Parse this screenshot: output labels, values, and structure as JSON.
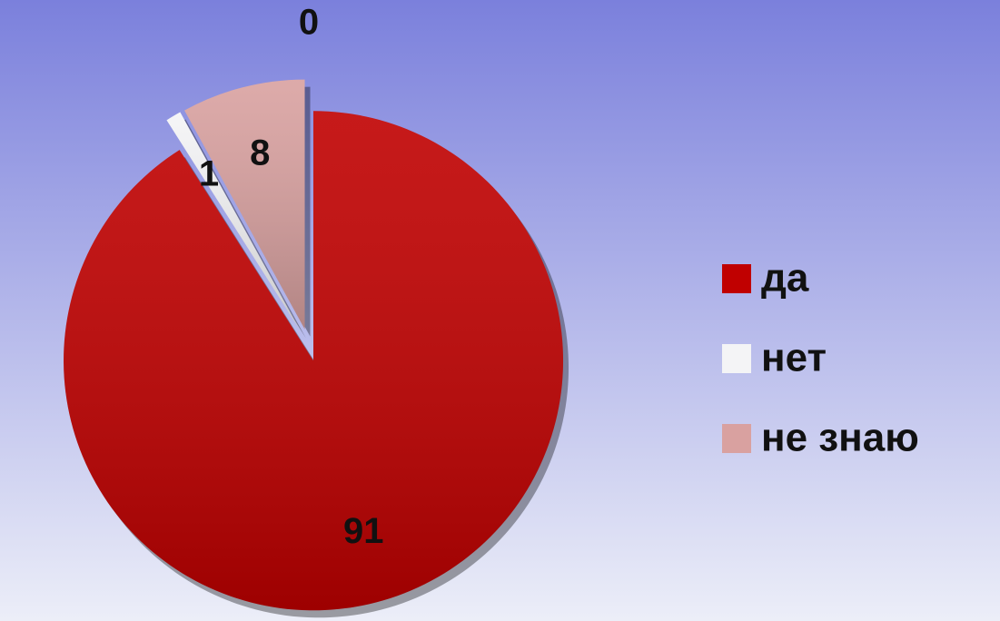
{
  "chart_data": {
    "type": "pie",
    "categories": [
      "да",
      "нет",
      "не знаю",
      null
    ],
    "values": [
      91,
      1,
      8,
      0
    ],
    "colors": [
      "#c00000",
      "#f4f4f6",
      "#d9a1a0",
      null
    ],
    "legend": "right"
  }
}
